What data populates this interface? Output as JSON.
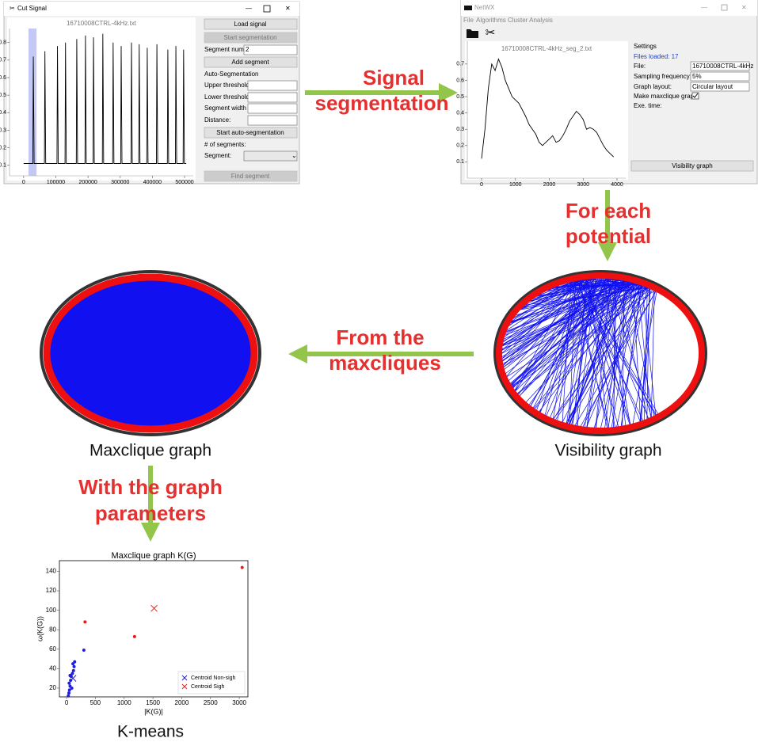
{
  "cut_signal": {
    "window_title": "Cut Signal",
    "load": "Load signal",
    "start_segmentation": "Start segmentation",
    "segment_num_label": "Segment num:",
    "segment_num_value": "2",
    "add_segment": "Add segment",
    "auto_heading": "Auto-Segmentation",
    "upper": "Upper threshold:",
    "lower": "Lower threshold",
    "width": "Segment width",
    "distance": "Distance:",
    "start_auto": "Start auto-segmentation",
    "num_segments": "# of segments:",
    "segment": "Segment:",
    "find": "Find segment"
  },
  "netwx": {
    "window_title": "NetWX",
    "menu": [
      "File",
      "Algorithms",
      "Cluster Analysis"
    ],
    "settings": "Settings",
    "files_loaded": "Files loaded: 17",
    "file_label": "File:",
    "file_value": "16710008CTRL-4kHz",
    "sampling_label": "Sampling frequency:",
    "sampling_value": "5%",
    "layout_label": "Graph layout:",
    "layout_value": "Circular layout",
    "maxclique_label": "Make maxclique graph",
    "exe_time": "Exe. time:",
    "button": "Visibility graph"
  },
  "arrows": [
    [
      "Signal",
      "segmentation"
    ],
    [
      "For each",
      "potential"
    ],
    [
      "From the",
      "maxcliques"
    ],
    [
      "With the graph",
      "parameters"
    ]
  ],
  "captions": {
    "maxclique": "Maxclique graph",
    "visibility": "Visibility graph",
    "kmeans": "K-means"
  },
  "chart_data": [
    {
      "type": "line",
      "title": "16710008CTRL-4kHz.txt",
      "color": "#000000",
      "x": [
        0,
        28500,
        30000,
        32500,
        64500,
        66000,
        68500,
        103500,
        105000,
        107500,
        128500,
        130000,
        132500,
        163500,
        165000,
        167500,
        190500,
        192000,
        194500,
        215500,
        217000,
        219500,
        244500,
        246000,
        248500,
        276500,
        278000,
        280500,
        301500,
        303000,
        305500,
        333500,
        335000,
        337500,
        357500,
        359000,
        361500,
        382500,
        384000,
        386500,
        412500,
        414000,
        416500,
        446500,
        448000,
        450500,
        471500,
        473000,
        475500,
        495500,
        497000,
        499500,
        505000
      ],
      "values": [
        0.11,
        0.11,
        0.72,
        0.11,
        0.11,
        0.75,
        0.11,
        0.11,
        0.78,
        0.11,
        0.11,
        0.8,
        0.11,
        0.11,
        0.82,
        0.11,
        0.11,
        0.84,
        0.11,
        0.11,
        0.83,
        0.11,
        0.11,
        0.85,
        0.11,
        0.11,
        0.8,
        0.11,
        0.11,
        0.78,
        0.11,
        0.11,
        0.8,
        0.11,
        0.11,
        0.79,
        0.11,
        0.11,
        0.77,
        0.11,
        0.11,
        0.79,
        0.11,
        0.11,
        0.76,
        0.11,
        0.11,
        0.78,
        0.11,
        0.11,
        0.76,
        0.11,
        0.11
      ],
      "selection": [
        15000,
        40000
      ],
      "selection_color": "#aab0f0",
      "xlim": [
        -44000,
        527000
      ],
      "ylim": [
        0.04,
        0.88
      ],
      "xticks": [
        0,
        100000,
        200000,
        300000,
        400000,
        500000
      ],
      "yticks": [
        0.1,
        0.2,
        0.3,
        0.4,
        0.5,
        0.6,
        0.7,
        0.8
      ]
    },
    {
      "type": "line",
      "title": "16710008CTRL-4kHz_seg_2.txt",
      "color": "#000000",
      "x": [
        0,
        100,
        200,
        300,
        400,
        500,
        600,
        700,
        800,
        900,
        1000,
        1100,
        1200,
        1300,
        1400,
        1500,
        1600,
        1700,
        1800,
        1900,
        2000,
        2100,
        2200,
        2300,
        2400,
        2500,
        2600,
        2700,
        2800,
        2900,
        3000,
        3100,
        3200,
        3300,
        3400,
        3500,
        3600,
        3700,
        3800,
        3900
      ],
      "values": [
        0.12,
        0.3,
        0.55,
        0.7,
        0.66,
        0.73,
        0.68,
        0.6,
        0.55,
        0.5,
        0.48,
        0.46,
        0.42,
        0.38,
        0.33,
        0.3,
        0.27,
        0.22,
        0.2,
        0.22,
        0.24,
        0.26,
        0.22,
        0.23,
        0.26,
        0.3,
        0.35,
        0.38,
        0.41,
        0.39,
        0.36,
        0.3,
        0.31,
        0.3,
        0.28,
        0.24,
        0.2,
        0.17,
        0.15,
        0.13
      ],
      "xlim": [
        -421,
        4257
      ],
      "ylim": [
        0.0,
        0.84
      ],
      "xticks": [
        0,
        1000,
        2000,
        3000,
        4000
      ],
      "yticks": [
        0.1,
        0.2,
        0.3,
        0.4,
        0.5,
        0.6,
        0.7
      ]
    },
    {
      "type": "scatter",
      "title": "Maxclique graph K(G)",
      "x_label": "|K(G)|",
      "y_label": "ω(K(G))",
      "legend": "lower right",
      "series": [
        {
          "color": "#1f1fe0",
          "marker": "dot",
          "x": [
            30,
            40,
            50,
            60,
            45,
            70,
            80,
            100,
            120,
            130,
            110,
            140,
            300,
            60,
            90
          ],
          "values": [
            12,
            15,
            18,
            22,
            25,
            28,
            32,
            35,
            38,
            42,
            45,
            47,
            59,
            33,
            20
          ]
        },
        {
          "color": "#e01f1f",
          "marker": "dot",
          "x": [
            320,
            1180,
            3050
          ],
          "values": [
            88,
            73,
            144
          ]
        },
        {
          "name": "Centroid Non-sigh",
          "color": "#1f1fe0",
          "marker": "x",
          "x": [
            110
          ],
          "values": [
            30
          ]
        },
        {
          "name": "Centroid Sigh",
          "color": "#e01f1f",
          "marker": "x",
          "x": [
            1520
          ],
          "values": [
            102
          ]
        }
      ],
      "xlim": [
        -125,
        3150
      ],
      "ylim": [
        11,
        151
      ],
      "xticks": [
        0,
        500,
        1000,
        1500,
        2000,
        2500,
        3000
      ],
      "yticks": [
        20,
        40,
        60,
        80,
        100,
        120,
        140
      ]
    }
  ]
}
